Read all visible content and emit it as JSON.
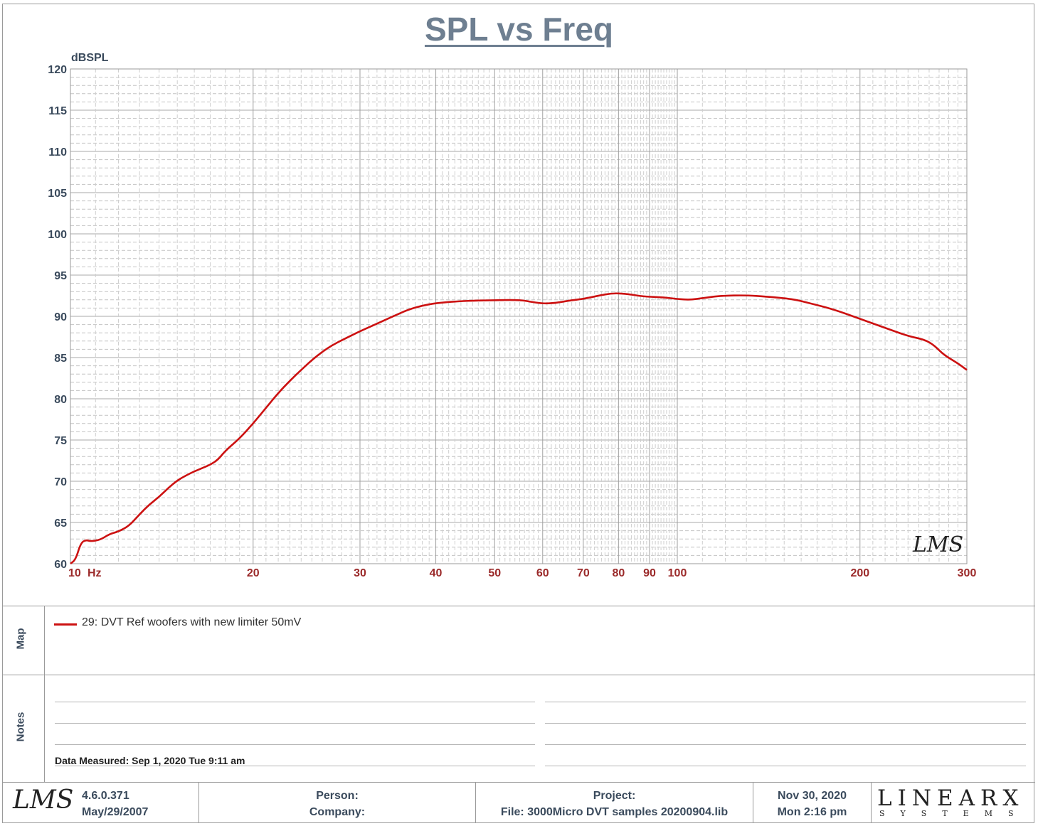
{
  "chart_data": {
    "type": "line",
    "title": "SPL vs Freq",
    "ylabel": "dBSPL",
    "xlabel": "Hz",
    "x_scale": "log",
    "xlim": [
      10,
      300
    ],
    "ylim": [
      60,
      120
    ],
    "grid": true,
    "y_ticks": [
      "120",
      "115",
      "110",
      "105",
      "100",
      "95",
      "90",
      "85",
      "80",
      "75",
      "70",
      "65",
      "60"
    ],
    "x_ticks": [
      {
        "value": 10,
        "label": "10"
      },
      {
        "value": 20,
        "label": "20"
      },
      {
        "value": 30,
        "label": "30"
      },
      {
        "value": 40,
        "label": "40"
      },
      {
        "value": 50,
        "label": "50"
      },
      {
        "value": 60,
        "label": "60"
      },
      {
        "value": 70,
        "label": "70"
      },
      {
        "value": 80,
        "label": "80"
      },
      {
        "value": 90,
        "label": "90"
      },
      {
        "value": 100,
        "label": "100"
      },
      {
        "value": 200,
        "label": "200"
      },
      {
        "value": 300,
        "label": "300"
      }
    ],
    "series": [
      {
        "name": "29: DVT Ref woofers with new limiter 50mV",
        "color": "#cc1111",
        "points": [
          [
            10,
            60.0
          ],
          [
            10.2,
            60.5
          ],
          [
            10.4,
            62.5
          ],
          [
            10.6,
            62.9
          ],
          [
            10.8,
            62.7
          ],
          [
            11.2,
            62.9
          ],
          [
            11.6,
            63.6
          ],
          [
            12.0,
            63.9
          ],
          [
            12.5,
            64.6
          ],
          [
            13.0,
            66.0
          ],
          [
            13.5,
            67.2
          ],
          [
            14.0,
            68.1
          ],
          [
            14.5,
            69.2
          ],
          [
            15.0,
            70.1
          ],
          [
            15.5,
            70.7
          ],
          [
            16.0,
            71.2
          ],
          [
            16.5,
            71.6
          ],
          [
            17.0,
            72.0
          ],
          [
            17.5,
            72.6
          ],
          [
            18.0,
            73.7
          ],
          [
            19.0,
            75.2
          ],
          [
            20.0,
            77.0
          ],
          [
            21.0,
            78.9
          ],
          [
            22.0,
            80.7
          ],
          [
            23.0,
            82.2
          ],
          [
            24.0,
            83.5
          ],
          [
            25.0,
            84.7
          ],
          [
            26.0,
            85.7
          ],
          [
            27.0,
            86.5
          ],
          [
            28.0,
            87.1
          ],
          [
            30.0,
            88.2
          ],
          [
            32.0,
            89.1
          ],
          [
            34.0,
            90.0
          ],
          [
            36.0,
            90.8
          ],
          [
            38.0,
            91.3
          ],
          [
            40.0,
            91.6
          ],
          [
            43.0,
            91.8
          ],
          [
            46.0,
            91.9
          ],
          [
            50.0,
            91.95
          ],
          [
            55.0,
            92.0
          ],
          [
            58.0,
            91.7
          ],
          [
            60.0,
            91.55
          ],
          [
            63.0,
            91.6
          ],
          [
            66.0,
            91.9
          ],
          [
            70.0,
            92.1
          ],
          [
            74.0,
            92.5
          ],
          [
            78.0,
            92.8
          ],
          [
            82.0,
            92.75
          ],
          [
            88.0,
            92.4
          ],
          [
            95.0,
            92.3
          ],
          [
            100.0,
            92.1
          ],
          [
            105.0,
            92.0
          ],
          [
            110.0,
            92.2
          ],
          [
            118.0,
            92.5
          ],
          [
            130.0,
            92.55
          ],
          [
            140.0,
            92.4
          ],
          [
            155.0,
            92.1
          ],
          [
            165.0,
            91.6
          ],
          [
            180.0,
            90.9
          ],
          [
            200.0,
            89.7
          ],
          [
            220.0,
            88.6
          ],
          [
            240.0,
            87.6
          ],
          [
            255.0,
            87.2
          ],
          [
            265.0,
            86.5
          ],
          [
            275.0,
            85.3
          ],
          [
            290.0,
            84.3
          ],
          [
            300.0,
            83.5
          ]
        ]
      }
    ]
  },
  "legend": {
    "map_label": "Map",
    "entries": [
      "29: DVT Ref woofers with new limiter 50mV"
    ]
  },
  "notes": {
    "label": "Notes",
    "data_measured": "Data Measured: Sep  1, 2020  Tue  9:11 am"
  },
  "footer": {
    "logo_text": "LMS",
    "version": "4.6.0.371",
    "version_date": "May/29/2007",
    "person_label": "Person:",
    "company_label": "Company:",
    "project_label": "Project:",
    "file_label": "File: 3000Micro DVT samples 20200904.lib",
    "date": "Nov 30, 2020",
    "time": "Mon  2:16 pm",
    "brand_main": "LINEARX",
    "brand_sub": "SYSTEMS"
  }
}
